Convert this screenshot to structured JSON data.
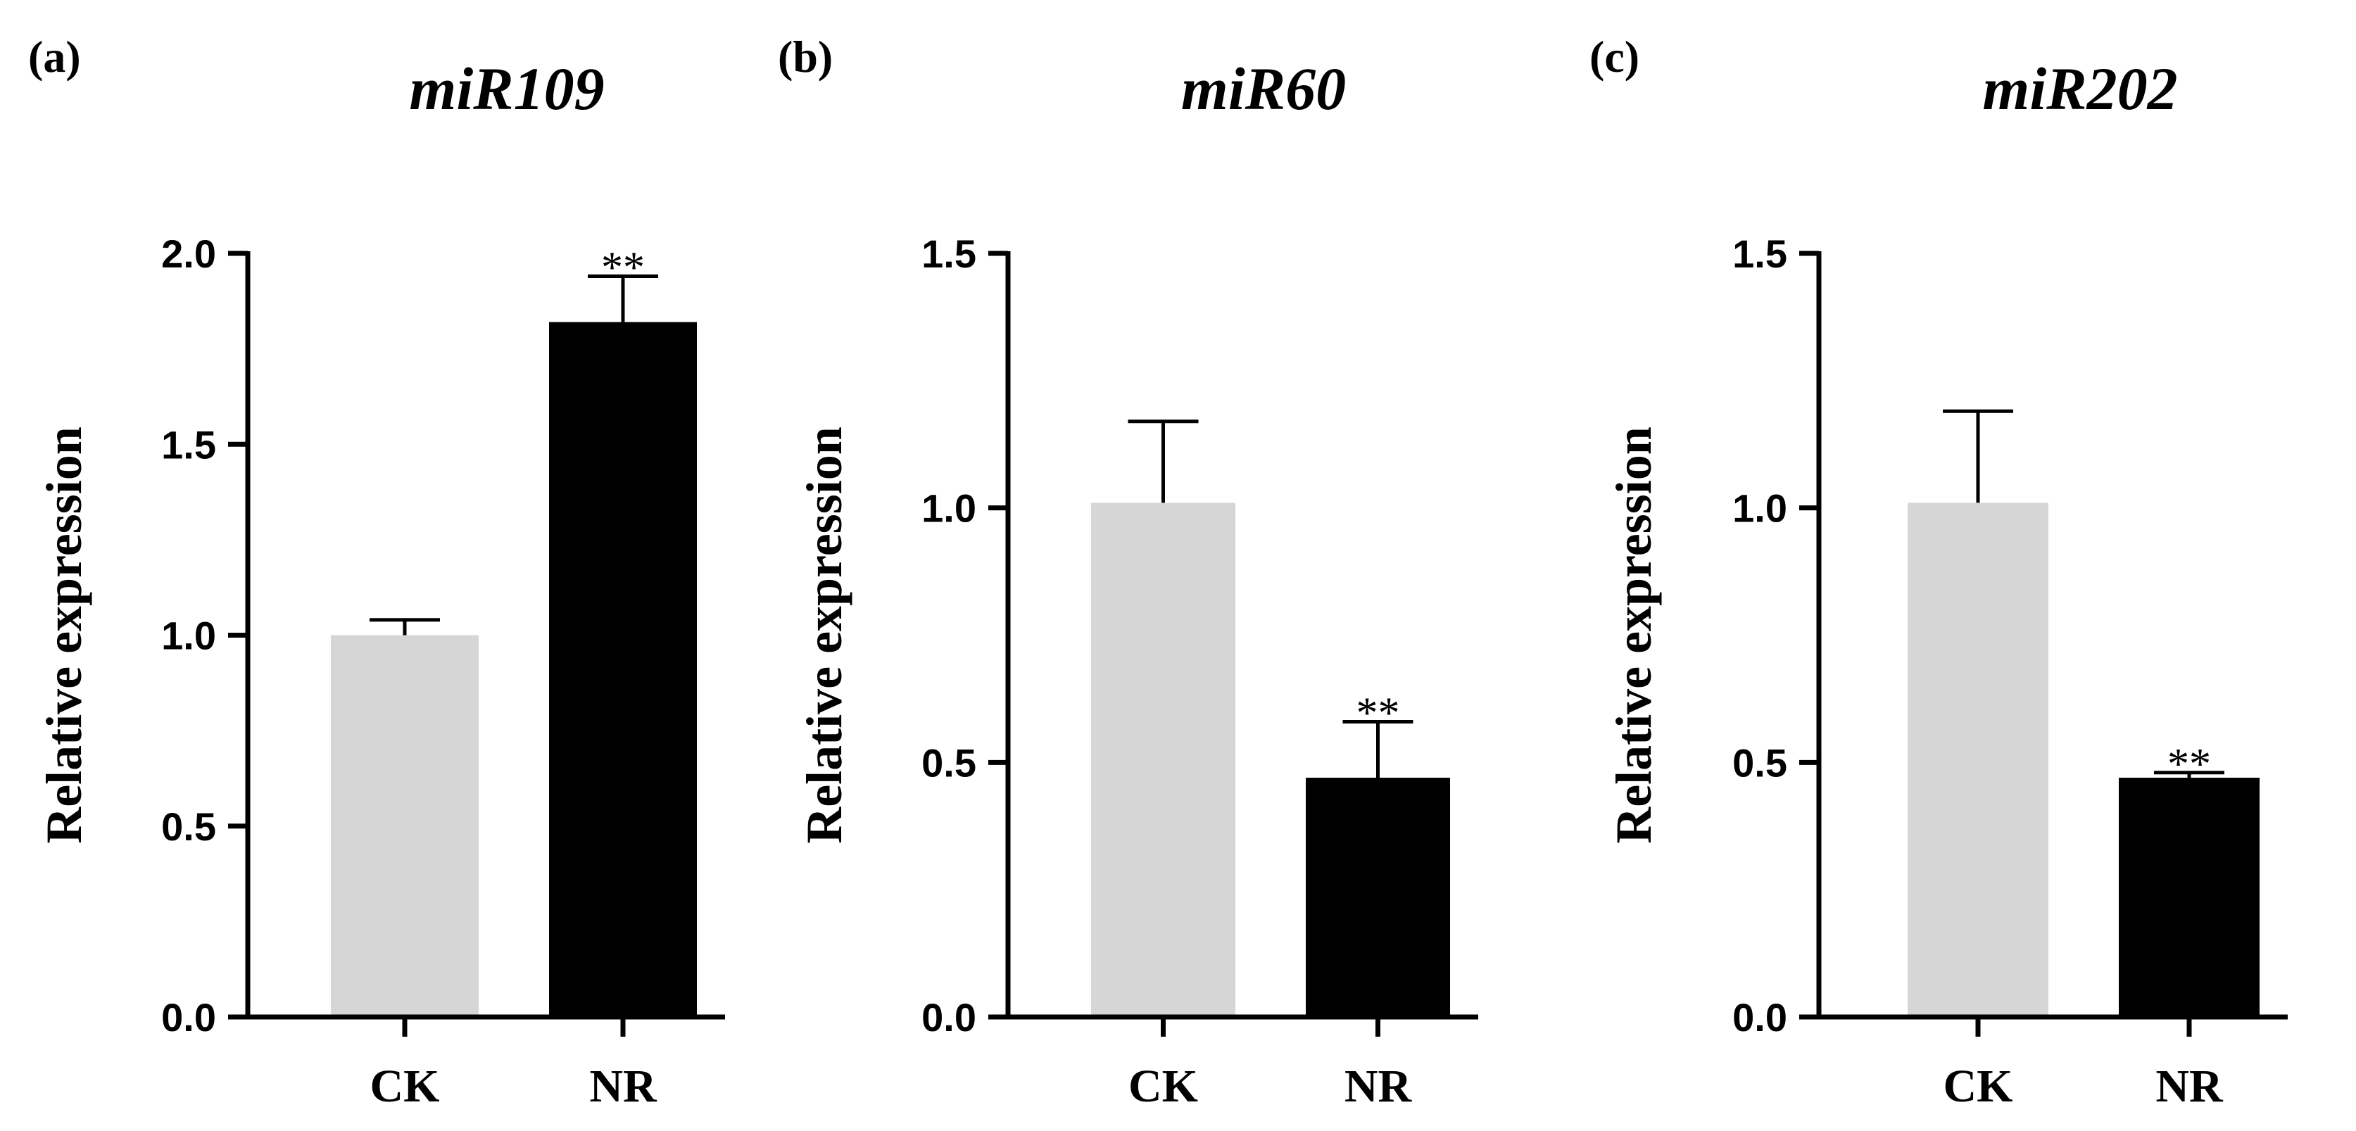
{
  "chart_data": [
    {
      "type": "bar",
      "panel": "(a)",
      "title": "miR109",
      "ylabel": "Relative expression",
      "xlabel": "",
      "categories": [
        "CK",
        "NR"
      ],
      "values": [
        1.0,
        1.82
      ],
      "errors": [
        0.04,
        0.12
      ],
      "colors": [
        "#d6d6d6",
        "#000000"
      ],
      "significance": [
        "",
        "**"
      ],
      "ylim": [
        0,
        2.0
      ],
      "yticks": [
        0.0,
        0.5,
        1.0,
        1.5,
        2.0
      ],
      "ytick_labels": [
        "0.0",
        "0.5",
        "1.0",
        "1.5",
        "2.0"
      ]
    },
    {
      "type": "bar",
      "panel": "(b)",
      "title": "miR60",
      "ylabel": "Relative expression",
      "xlabel": "",
      "categories": [
        "CK",
        "NR"
      ],
      "values": [
        1.01,
        0.47
      ],
      "errors": [
        0.16,
        0.11
      ],
      "colors": [
        "#d6d6d6",
        "#000000"
      ],
      "significance": [
        "",
        "**"
      ],
      "ylim": [
        0,
        1.5
      ],
      "yticks": [
        0.0,
        0.5,
        1.0,
        1.5
      ],
      "ytick_labels": [
        "0.0",
        "0.5",
        "1.0",
        "1.5"
      ]
    },
    {
      "type": "bar",
      "panel": "(c)",
      "title": "miR202",
      "ylabel": "Relative expression",
      "xlabel": "",
      "categories": [
        "CK",
        "NR"
      ],
      "values": [
        1.01,
        0.47
      ],
      "errors": [
        0.18,
        0.01
      ],
      "colors": [
        "#d6d6d6",
        "#000000"
      ],
      "significance": [
        "",
        "**"
      ],
      "ylim": [
        0,
        1.5
      ],
      "yticks": [
        0.0,
        0.5,
        1.0,
        1.5
      ],
      "ytick_labels": [
        "0.0",
        "0.5",
        "1.0",
        "1.5"
      ]
    }
  ]
}
